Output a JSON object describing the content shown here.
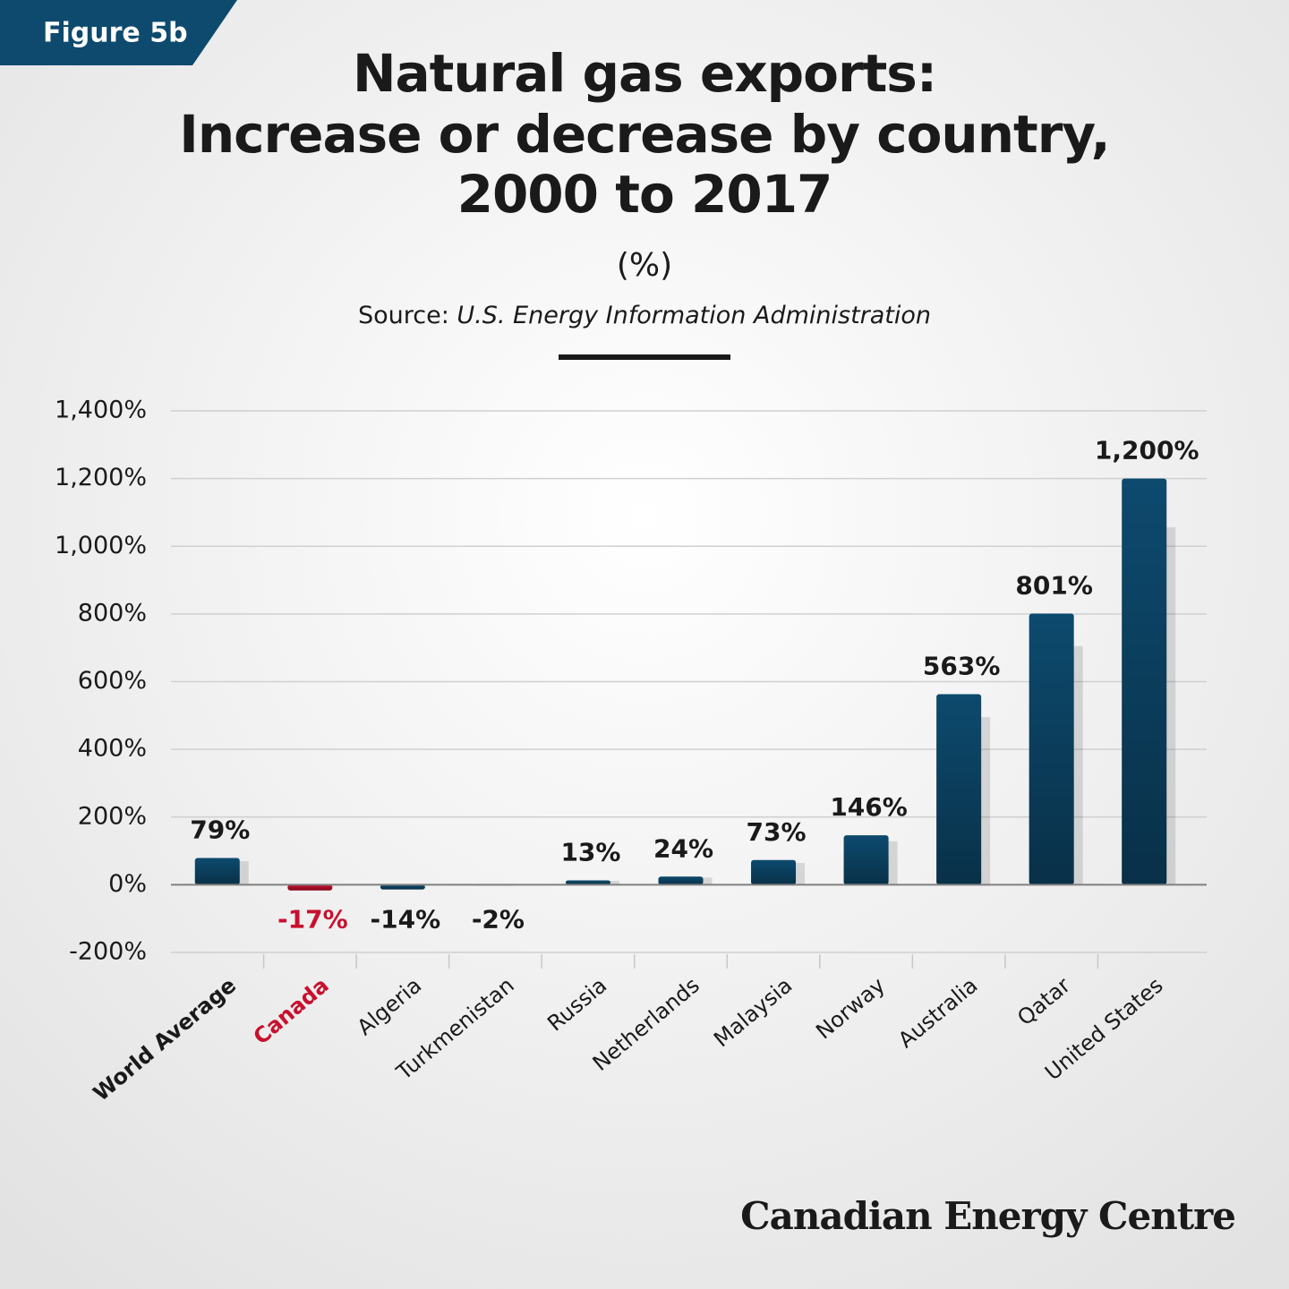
{
  "badge": "Figure 5b",
  "chart_data": {
    "type": "bar",
    "title": [
      "Natural gas exports:",
      "Increase or decrease by country,",
      "2000 to 2017"
    ],
    "subtitle": "(%)",
    "source_label": "Source:",
    "source": "U.S. Energy Information Administration",
    "categories": [
      "World Average",
      "Canada",
      "Algeria",
      "Turkmenistan",
      "Russia",
      "Netherlands",
      "Malaysia",
      "Norway",
      "Australia",
      "Qatar",
      "United States"
    ],
    "values": [
      79,
      -17,
      -14,
      -2,
      13,
      24,
      73,
      146,
      563,
      801,
      1200
    ],
    "value_labels": [
      "79%",
      "-17%",
      "-14%",
      "-2%",
      "13%",
      "24%",
      "73%",
      "146%",
      "563%",
      "801%",
      "1,200%"
    ],
    "colors": [
      "#0d4a6e",
      "#c8102e",
      "#0d4a6e",
      "#0d4a6e",
      "#0d4a6e",
      "#0d4a6e",
      "#0d4a6e",
      "#0d4a6e",
      "#0d4a6e",
      "#0d4a6e",
      "#0d4a6e"
    ],
    "ylim": [
      -200,
      1400
    ],
    "yticks": [
      {
        "value": -200,
        "label": "-200%"
      },
      {
        "value": 0,
        "label": "0%"
      },
      {
        "value": 200,
        "label": "200%"
      },
      {
        "value": 400,
        "label": "400%"
      },
      {
        "value": 600,
        "label": "600%"
      },
      {
        "value": 800,
        "label": "800%"
      },
      {
        "value": 1000,
        "label": "1,000%"
      },
      {
        "value": 1200,
        "label": "1,200%"
      },
      {
        "value": 1400,
        "label": "1,400%"
      }
    ],
    "grid": true
  },
  "brand": "Canadian Energy Centre"
}
